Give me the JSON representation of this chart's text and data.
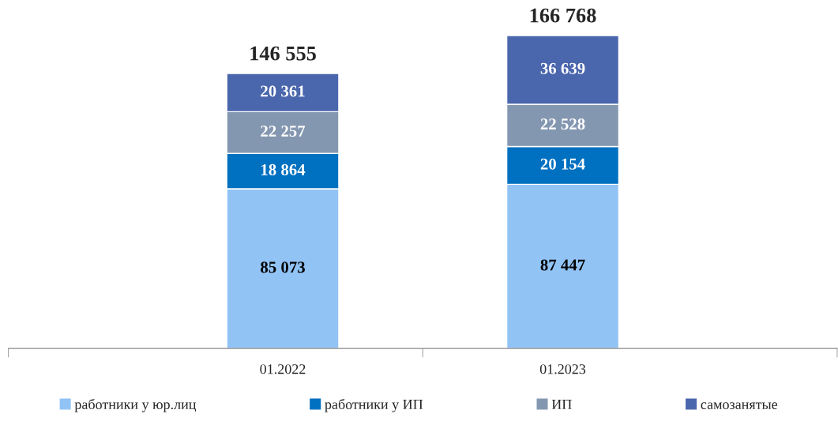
{
  "chart_data": {
    "type": "bar",
    "stacked": true,
    "categories": [
      "01.2022",
      "01.2023"
    ],
    "series": [
      {
        "name": "работники у юр.лиц",
        "color": "#91c3f5",
        "values": [
          85073,
          87447
        ],
        "value_labels": [
          "85 073",
          "87 447"
        ]
      },
      {
        "name": "работники у ИП",
        "color": "#0070c0",
        "values": [
          18864,
          20154
        ],
        "value_labels": [
          "18 864",
          "20 154"
        ]
      },
      {
        "name": "ИП",
        "color": "#8497b0",
        "values": [
          22257,
          22528
        ],
        "value_labels": [
          "22 257",
          "22 528"
        ]
      },
      {
        "name": "самозанятые",
        "color": "#4a66ac",
        "values": [
          20361,
          36639
        ],
        "value_labels": [
          "20 361",
          "36 639"
        ]
      }
    ],
    "totals": [
      "146 555",
      "166 768"
    ],
    "legend": "bottom",
    "grid": false
  }
}
